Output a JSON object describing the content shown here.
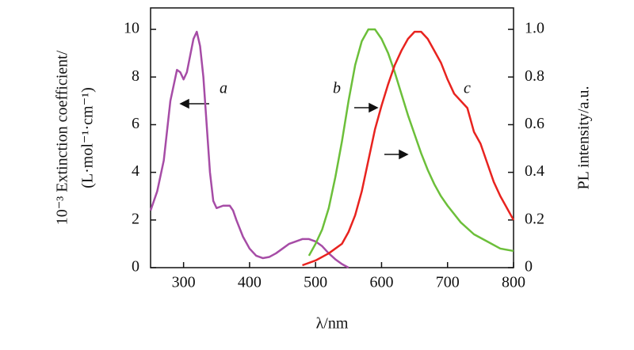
{
  "chart_data": {
    "type": "line",
    "y_label_lines": [
      "10⁻³ Extinction coefficient/",
      "(L·mol⁻¹·cm⁻¹)"
    ],
    "y2_label": "PL intensity/a.u.",
    "x_label": "λ/nm",
    "annotations": [
      "a",
      "b",
      "c"
    ],
    "xlim": [
      250,
      800
    ],
    "xticks": [
      300,
      400,
      500,
      600,
      700,
      800
    ],
    "ylim": [
      0,
      10.9
    ],
    "yticks": [
      0,
      2,
      4,
      6,
      8,
      10
    ],
    "y2lim": [
      0,
      1.09
    ],
    "y2ticks": [
      0,
      0.2,
      0.4,
      0.6,
      0.8,
      {
        "value": 1,
        "label": "1.0"
      }
    ],
    "series": [
      {
        "color": "#a64ca6",
        "axis": "y",
        "x": [
          250,
          260,
          270,
          280,
          290,
          295,
          300,
          305,
          310,
          315,
          320,
          325,
          330,
          335,
          340,
          345,
          350,
          360,
          370,
          375,
          380,
          390,
          400,
          410,
          420,
          430,
          440,
          450,
          460,
          470,
          480,
          490,
          500,
          510,
          520,
          530,
          540,
          550
        ],
        "values": [
          2.4,
          3.2,
          4.5,
          7.0,
          8.3,
          8.2,
          7.9,
          8.2,
          8.9,
          9.6,
          9.9,
          9.3,
          8.0,
          6.0,
          4.0,
          2.8,
          2.5,
          2.6,
          2.6,
          2.4,
          2.0,
          1.3,
          0.8,
          0.5,
          0.4,
          0.45,
          0.6,
          0.8,
          1.0,
          1.1,
          1.2,
          1.2,
          1.1,
          0.9,
          0.6,
          0.35,
          0.15,
          0.0
        ]
      },
      {
        "color": "#6cbf3a",
        "axis": "y2",
        "x": [
          490,
          500,
          510,
          520,
          530,
          540,
          550,
          560,
          570,
          580,
          590,
          600,
          610,
          620,
          630,
          640,
          650,
          660,
          670,
          680,
          690,
          700,
          720,
          740,
          760,
          780,
          800
        ],
        "values": [
          0.05,
          0.1,
          0.16,
          0.25,
          0.38,
          0.53,
          0.7,
          0.85,
          0.95,
          1.0,
          1.0,
          0.96,
          0.9,
          0.82,
          0.73,
          0.64,
          0.56,
          0.48,
          0.41,
          0.35,
          0.3,
          0.26,
          0.19,
          0.14,
          0.11,
          0.08,
          0.07
        ]
      },
      {
        "color": "#e8231f",
        "axis": "y2",
        "x": [
          480,
          500,
          520,
          540,
          550,
          560,
          570,
          580,
          590,
          600,
          610,
          620,
          630,
          640,
          650,
          660,
          670,
          680,
          690,
          700,
          710,
          720,
          730,
          740,
          750,
          760,
          770,
          780,
          790,
          800
        ],
        "values": [
          0.01,
          0.03,
          0.06,
          0.1,
          0.15,
          0.22,
          0.32,
          0.45,
          0.58,
          0.68,
          0.77,
          0.85,
          0.91,
          0.96,
          0.99,
          0.99,
          0.96,
          0.91,
          0.86,
          0.79,
          0.73,
          0.7,
          0.67,
          0.57,
          0.52,
          0.44,
          0.36,
          0.3,
          0.25,
          0.2
        ]
      }
    ]
  }
}
